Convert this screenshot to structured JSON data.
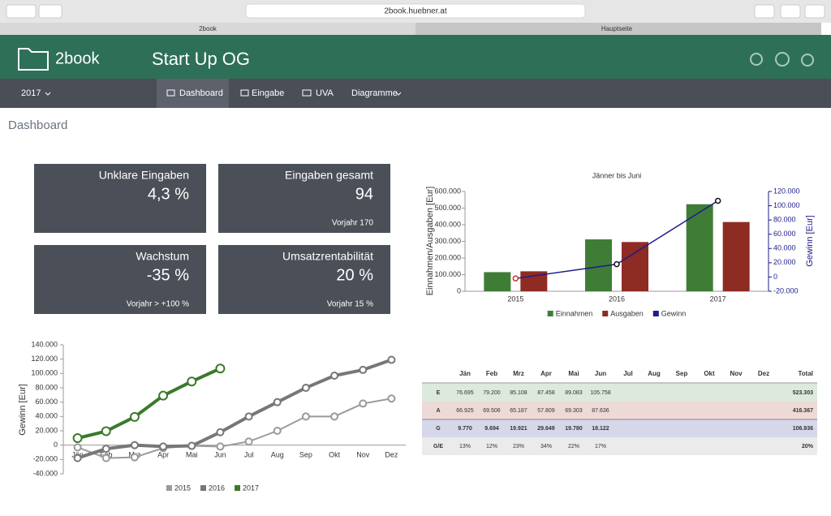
{
  "browser": {
    "url": "2book.huebner.at",
    "tabs": [
      "2book",
      "Hauptseite"
    ]
  },
  "header": {
    "logo": "2book",
    "company": "Start Up OG"
  },
  "nav": {
    "year": "2017",
    "items": [
      "Dashboard",
      "Eingabe",
      "UVA",
      "Diagramme"
    ]
  },
  "page_title": "Dashboard",
  "kpis": [
    {
      "label": "Unklare Eingaben",
      "value": "4,3 %"
    },
    {
      "label": "Eingaben gesamt",
      "value": "94",
      "note": "Vorjahr 170"
    },
    {
      "label": "Wachstum",
      "value": "-35 %",
      "note": "Vorjahr > +100 %"
    },
    {
      "label": "Umsatzrentabilität",
      "value": "20 %",
      "note": "Vorjahr 15 %"
    }
  ],
  "table": {
    "header": [
      null,
      "Jän",
      "Feb",
      "Mrz",
      "Apr",
      "Mai",
      "Jun",
      "Jul",
      "Aug",
      "Sep",
      "Okt",
      "Nov",
      "Dez",
      "Total"
    ],
    "rows": [
      [
        "E",
        "76.695",
        "79.200",
        "85.108",
        "87.458",
        "89.083",
        "105.758",
        null,
        null,
        null,
        null,
        null,
        null,
        "523.303"
      ],
      [
        "A",
        "66.925",
        "69.506",
        "65.187",
        "57.809",
        "69.303",
        "87.636",
        null,
        null,
        null,
        null,
        null,
        null,
        "416.367"
      ],
      [
        "G",
        "9.770",
        "9.694",
        "19.921",
        "29.649",
        "19.780",
        "18.122",
        null,
        null,
        null,
        null,
        null,
        null,
        "106.936"
      ],
      [
        "G/E",
        "13%",
        "12%",
        "23%",
        "34%",
        "22%",
        "17%",
        null,
        null,
        null,
        null,
        null,
        null,
        "20%"
      ]
    ]
  },
  "chart_data": [
    {
      "type": "bar",
      "title": "Jänner bis Juni",
      "categories": [
        "2015",
        "2016",
        "2017"
      ],
      "ylabel": "Einnahmen/Ausgaben [Eur]",
      "y2label": "Gewinn [Eur]",
      "ylim": [
        0,
        600000
      ],
      "yticks": [
        0,
        {
          "value": 100000,
          "label": "100.000"
        },
        {
          "value": 200000,
          "label": "200.000"
        },
        {
          "value": 300000,
          "label": "300.000"
        },
        {
          "value": 400000,
          "label": "400.000"
        },
        {
          "value": 500000,
          "label": "500.000"
        },
        {
          "value": 600000,
          "label": "600.000"
        }
      ],
      "y2lim": [
        -20000,
        120000
      ],
      "y2ticks": [
        {
          "value": -20000,
          "label": "-20.000"
        },
        0,
        {
          "value": 20000,
          "label": "20.000"
        },
        {
          "value": 40000,
          "label": "40.000"
        },
        {
          "value": 60000,
          "label": "60.000"
        },
        {
          "value": 80000,
          "label": "80.000"
        },
        {
          "value": 100000,
          "label": "100.000"
        },
        {
          "value": 120000,
          "label": "120.000"
        }
      ],
      "legend": "bottom",
      "series": [
        {
          "name": "Einnahmen",
          "color": "#3f7d36",
          "values": [
            115000,
            312000,
            523303
          ]
        },
        {
          "name": "Ausgaben",
          "color": "#8e2b23",
          "values": [
            120000,
            296000,
            416367
          ]
        },
        {
          "name": "Gewinn",
          "color": "#1c1c8a",
          "type": "line",
          "axis": "y2",
          "negative_color": "#c0392b",
          "values": [
            -2000,
            18000,
            106936
          ]
        }
      ]
    },
    {
      "type": "line",
      "ylabel": "Gewinn [Eur]",
      "categories": [
        "Jän",
        "Feb",
        "Mrz",
        "Apr",
        "Mai",
        "Jun",
        "Jul",
        "Aug",
        "Sep",
        "Okt",
        "Nov",
        "Dez"
      ],
      "ylim": [
        -40000,
        140000
      ],
      "yticks": [
        {
          "value": -40000,
          "label": "-40.000"
        },
        {
          "value": -20000,
          "label": "-20.000"
        },
        0,
        {
          "value": 20000,
          "label": "20.000"
        },
        {
          "value": 40000,
          "label": "40.000"
        },
        {
          "value": 60000,
          "label": "60.000"
        },
        {
          "value": 80000,
          "label": "80.000"
        },
        {
          "value": 100000,
          "label": "100.000"
        },
        {
          "value": 120000,
          "label": "120.000"
        },
        {
          "value": 140000,
          "label": "140.000"
        }
      ],
      "legend": "bottom",
      "series": [
        {
          "name": "2015",
          "color": "#9a9a9a",
          "values": [
            -3000,
            -18000,
            -17000,
            -4000,
            -1000,
            -2000,
            5000,
            20000,
            40000,
            40000,
            58000,
            65000
          ]
        },
        {
          "name": "2016",
          "color": "#777777",
          "values": [
            -18000,
            -5000,
            0,
            -2000,
            -1000,
            18000,
            40000,
            60000,
            80000,
            97000,
            105000,
            119000
          ]
        },
        {
          "name": "2017",
          "color": "#3a7a2a",
          "values": [
            9770,
            19464,
            39385,
            69034,
            88814,
            106936,
            null,
            null,
            null,
            null,
            null,
            null
          ]
        }
      ]
    }
  ]
}
